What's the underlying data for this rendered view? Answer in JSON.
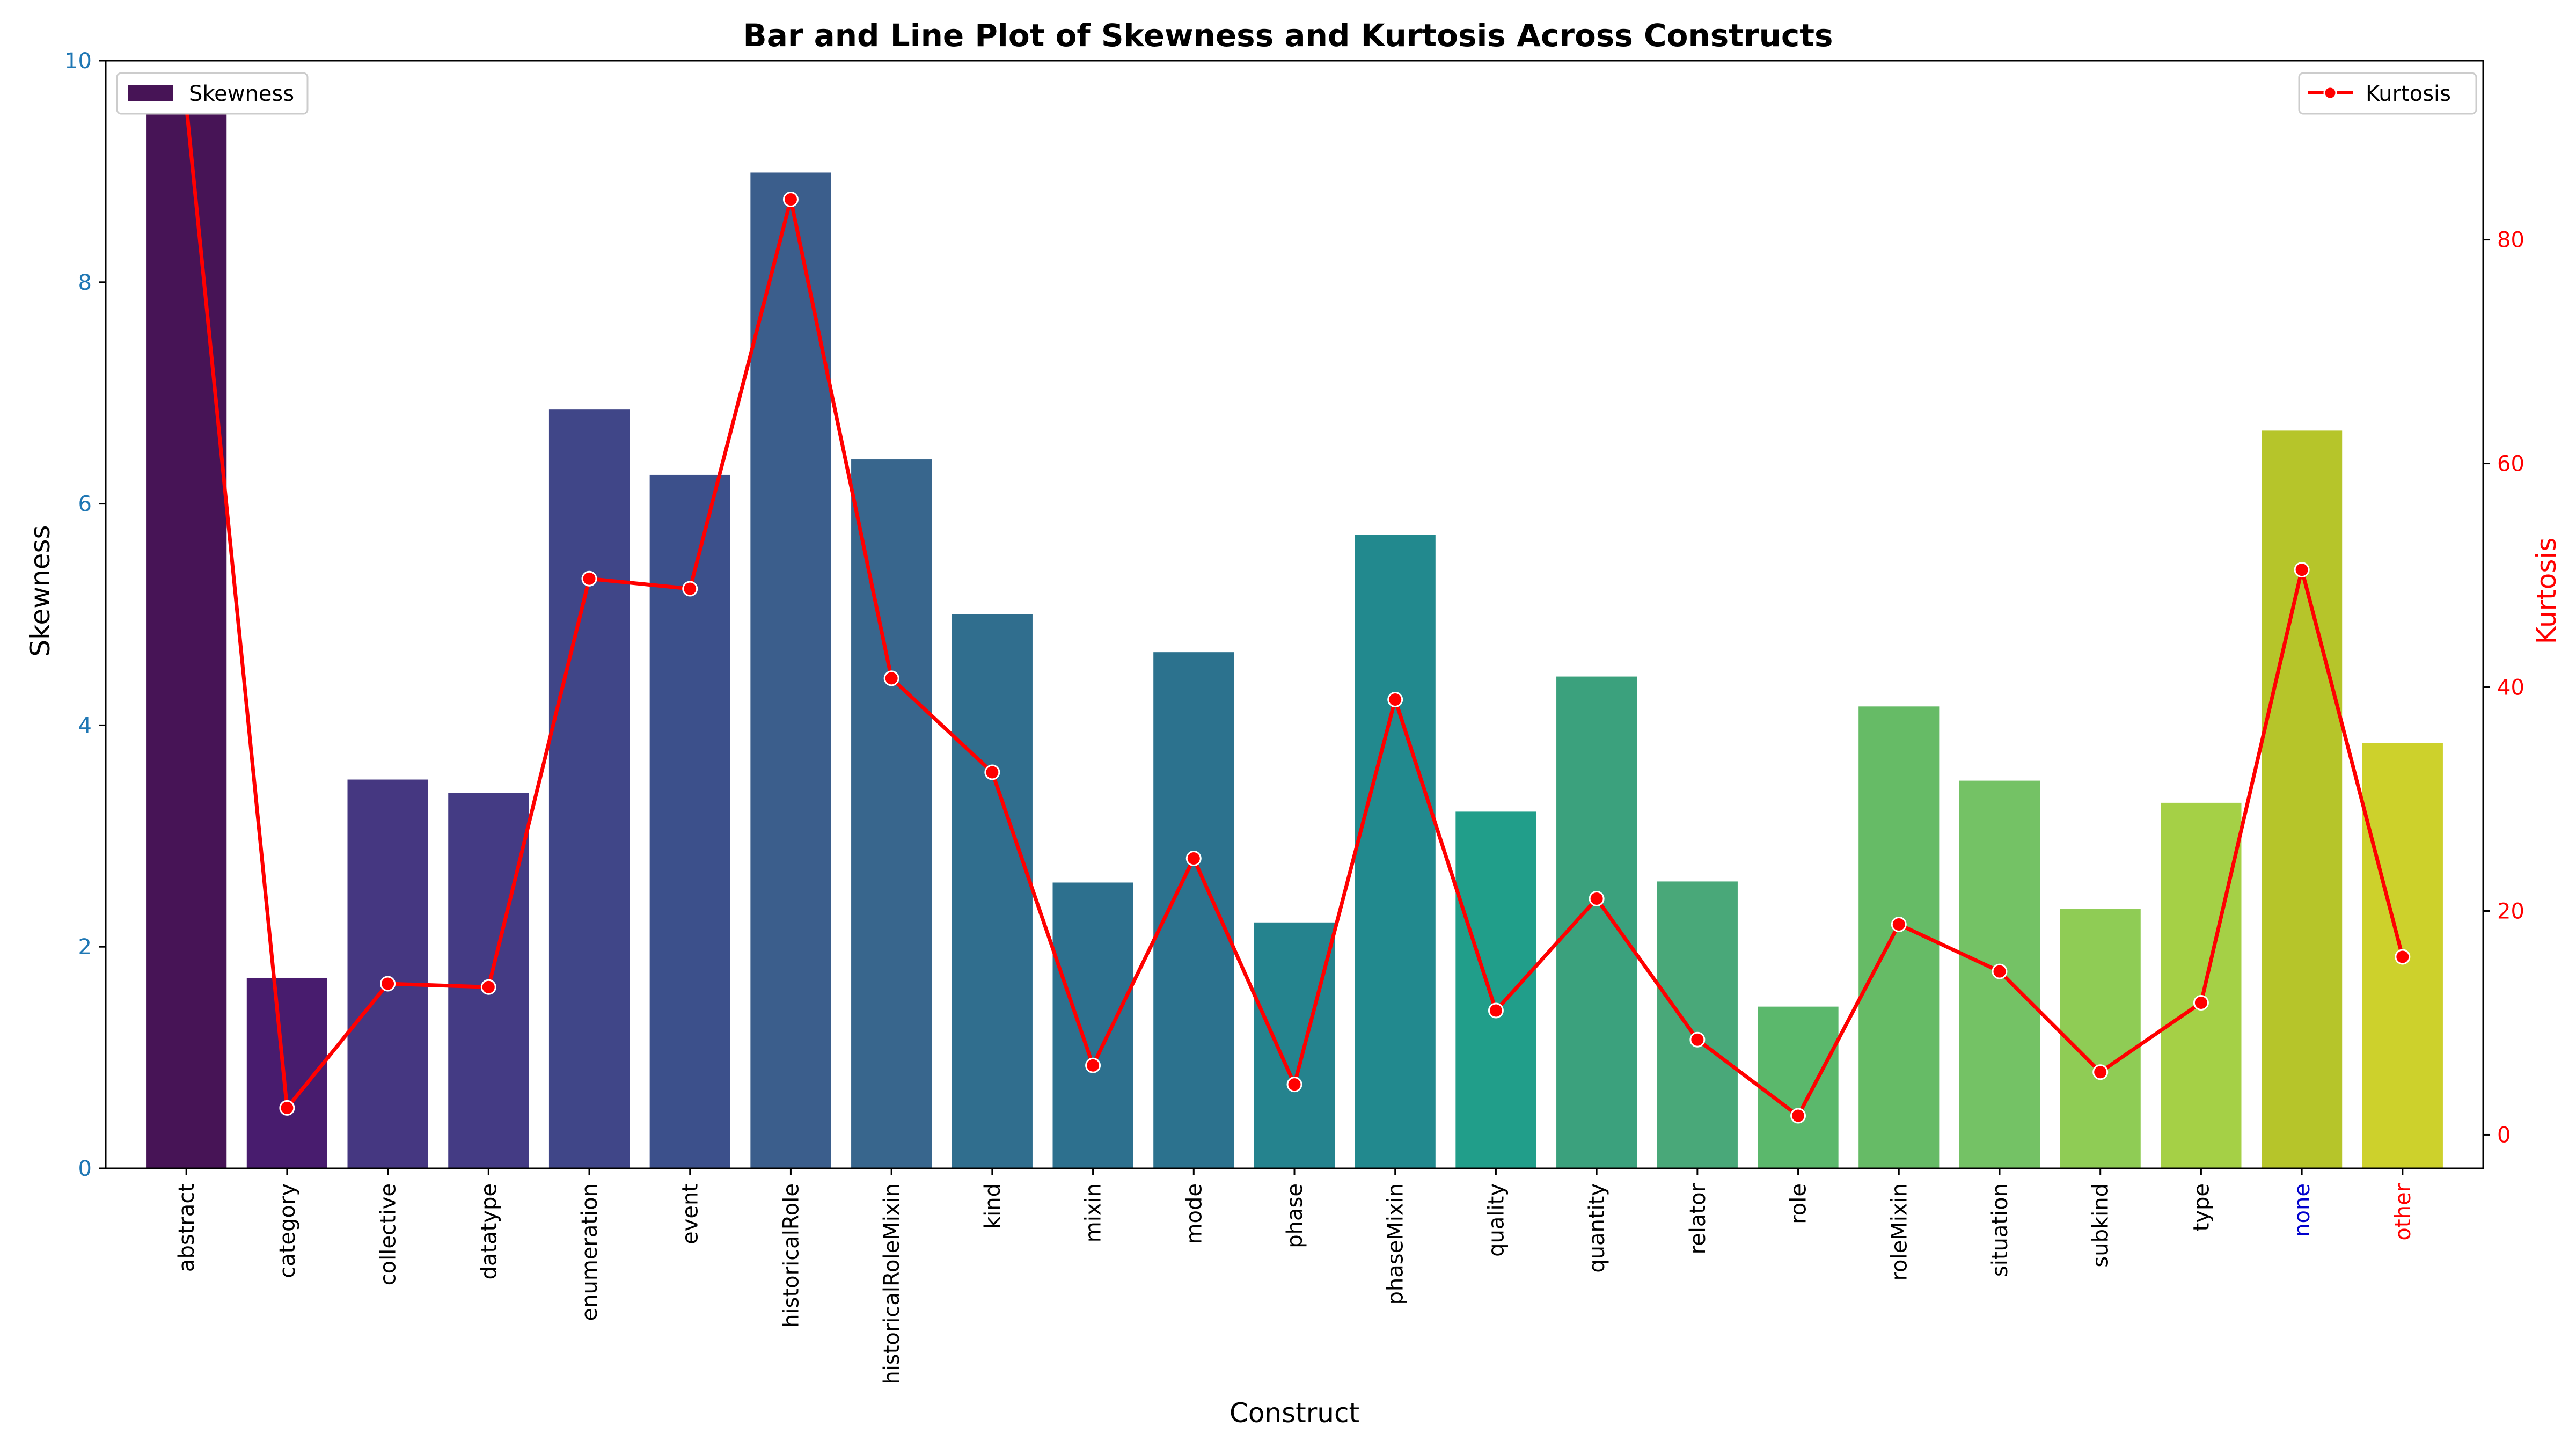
{
  "chart_data": {
    "type": "bar",
    "title": "Bar and Line Plot of Skewness and Kurtosis Across Constructs",
    "xlabel": "Construct",
    "ylabel": "Skewness",
    "y2label": "Kurtosis",
    "categories": [
      "abstract",
      "category",
      "collective",
      "datatype",
      "enumeration",
      "event",
      "historicalRole",
      "historicalRoleMixin",
      "kind",
      "mixin",
      "mode",
      "phase",
      "phaseMixin",
      "quality",
      "quantity",
      "relator",
      "role",
      "roleMixin",
      "situation",
      "subkind",
      "type",
      "none",
      "other"
    ],
    "category_label_colors": {
      "none": "#0000cc",
      "other": "#ff0000"
    },
    "ylim": [
      0,
      10
    ],
    "y_ticks": [
      0,
      2,
      4,
      6,
      8,
      10
    ],
    "y2lim": [
      -3,
      96
    ],
    "y2_ticks": [
      0,
      20,
      40,
      60,
      80
    ],
    "series": [
      {
        "name": "Skewness",
        "kind": "bar",
        "axis": "left",
        "values": [
          9.6,
          1.72,
          3.51,
          3.39,
          6.85,
          6.26,
          8.99,
          6.4,
          5.0,
          2.58,
          4.66,
          2.22,
          5.72,
          3.22,
          4.44,
          2.59,
          1.46,
          4.17,
          3.5,
          2.34,
          3.3,
          6.66,
          3.84
        ],
        "colors": [
          "#471456",
          "#481c6e",
          "#453781",
          "#443b84",
          "#404688",
          "#3c508b",
          "#3b5e8c",
          "#38668d",
          "#306e8e",
          "#2d708e",
          "#2c728e",
          "#25838e",
          "#22898e",
          "#219e8a",
          "#3ba17d",
          "#49a879",
          "#5bb86c",
          "#66bb66",
          "#74c265",
          "#8fcc55",
          "#a5d046",
          "#b6c52a",
          "#cdd12c"
        ]
      },
      {
        "name": "Kurtosis",
        "kind": "line",
        "axis": "right",
        "color": "#ff0000",
        "values": [
          92.0,
          2.4,
          13.5,
          13.2,
          49.7,
          48.8,
          83.6,
          40.8,
          32.4,
          6.2,
          24.7,
          4.5,
          38.9,
          11.1,
          21.1,
          8.5,
          1.7,
          18.8,
          14.6,
          5.6,
          11.8,
          50.5,
          15.9
        ]
      }
    ],
    "legend": [
      {
        "label": "Skewness",
        "placement": "upper-left"
      },
      {
        "label": "Kurtosis",
        "placement": "upper-right"
      }
    ],
    "grid": false
  },
  "colors": {
    "left_axis": "#1f77b4",
    "right_axis": "#ff0000"
  }
}
